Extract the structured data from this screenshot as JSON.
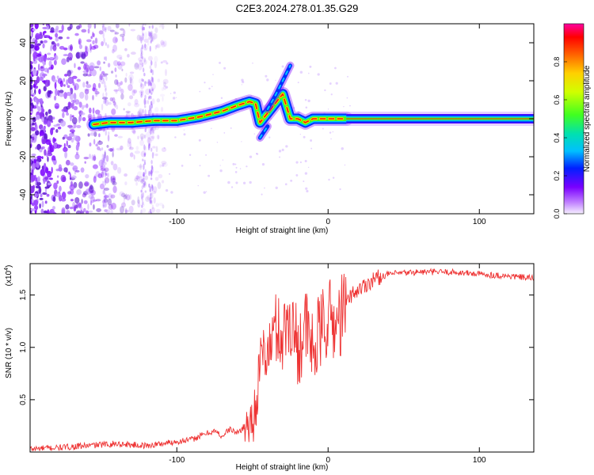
{
  "title": "C2E3.2024.278.01.35.G29",
  "chart_data": [
    {
      "type": "heatmap",
      "xlabel": "Height of straight line (km)",
      "ylabel": "Frequency (Hz)",
      "xlim": [
        -197,
        136
      ],
      "ylim": [
        -50,
        50
      ],
      "xticks": [
        -100,
        0,
        100
      ],
      "yticks": [
        -40,
        -20,
        0,
        20,
        40
      ],
      "colorbar": {
        "label": "Normalized spectral amplitude",
        "range": [
          0,
          1
        ],
        "ticks": [
          0.0,
          0.2,
          0.4,
          0.6,
          0.8
        ]
      },
      "signal_trace": {
        "x": [
          -155,
          -145,
          -130,
          -115,
          -100,
          -85,
          -70,
          -60,
          -52,
          -48,
          -45,
          -40,
          -35,
          -30,
          -25,
          -20,
          -15,
          -10,
          -5,
          0,
          5,
          10,
          20,
          50,
          100,
          136
        ],
        "y": [
          -3,
          -2,
          -2,
          -1,
          -1,
          1,
          4,
          7,
          9,
          8,
          -2,
          3,
          8,
          13,
          0,
          0,
          -2,
          0,
          0,
          0,
          0,
          0,
          0,
          0,
          0,
          0
        ]
      },
      "branches": [
        {
          "x": [
            -40,
            -35,
            -30,
            -25
          ],
          "y": [
            5,
            12,
            20,
            28
          ]
        },
        {
          "x": [
            -45,
            -40
          ],
          "y": [
            -10,
            -4
          ]
        }
      ]
    },
    {
      "type": "line",
      "xlabel": "Height of straight line (km)",
      "ylabel": "SNR (10 * v/v)",
      "y_multiplier": "(x10",
      "y_multiplier_exp": "4",
      "xlim": [
        -197,
        136
      ],
      "ylim": [
        0,
        1.8
      ],
      "xticks": [
        -100,
        0,
        100
      ],
      "yticks": [
        0.5,
        1.0,
        1.5
      ],
      "color": "#ee3333",
      "series": [
        {
          "x": [
            -197,
            -180,
            -160,
            -140,
            -120,
            -100,
            -90,
            -80,
            -75,
            -70,
            -65,
            -60,
            -55,
            -50,
            -48,
            -45,
            -42,
            -40,
            -35,
            -30,
            -25,
            -20,
            -15,
            -10,
            -5,
            0,
            5,
            10,
            15,
            20,
            30,
            40,
            60,
            80,
            100,
            120,
            136
          ],
          "y": [
            0.03,
            0.04,
            0.06,
            0.08,
            0.06,
            0.1,
            0.12,
            0.18,
            0.2,
            0.15,
            0.22,
            0.18,
            0.25,
            0.3,
            0.45,
            0.8,
            1.0,
            0.9,
            1.2,
            1.1,
            1.3,
            1.0,
            1.2,
            0.95,
            1.15,
            1.3,
            1.2,
            1.35,
            1.5,
            1.55,
            1.65,
            1.7,
            1.72,
            1.72,
            1.7,
            1.68,
            1.66
          ]
        }
      ]
    }
  ]
}
